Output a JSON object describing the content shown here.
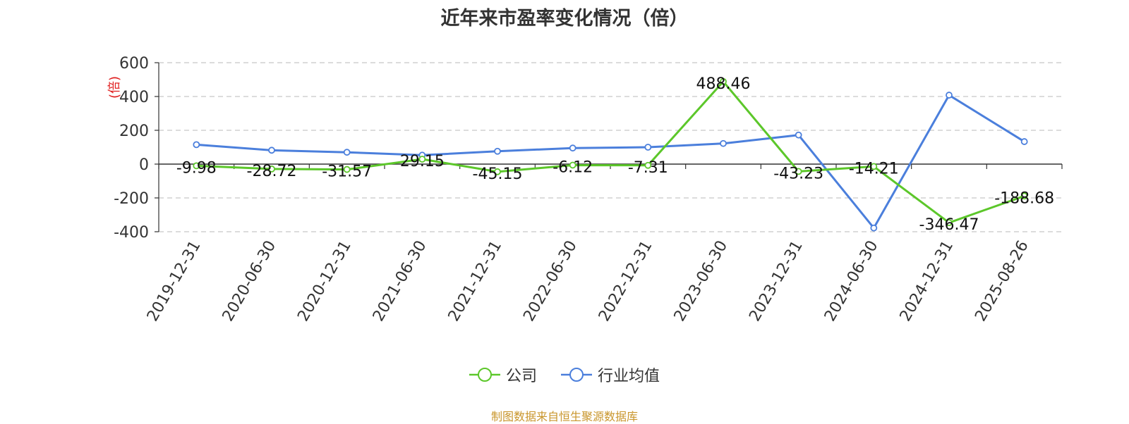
{
  "chart_data": {
    "type": "line",
    "title": "近年来市盈率变化情况（倍）",
    "ylabel": "(倍)",
    "xlabel": "",
    "ylim": [
      -400,
      600
    ],
    "yticks": [
      -400,
      -200,
      0,
      200,
      400,
      600
    ],
    "grid": true,
    "legend_position": "bottom-center",
    "categories": [
      "2019-12-31",
      "2020-06-30",
      "2020-12-31",
      "2021-06-30",
      "2021-12-31",
      "2022-06-30",
      "2022-12-31",
      "2023-06-30",
      "2023-12-31",
      "2024-06-30",
      "2024-12-31",
      "2025-08-26"
    ],
    "series": [
      {
        "name": "公司",
        "color": "#5cc72a",
        "values": [
          -9.98,
          -28.72,
          -31.57,
          29.15,
          -45.15,
          -6.12,
          -7.31,
          488.46,
          -43.23,
          -14.21,
          -346.47,
          -188.68
        ],
        "labels": [
          "-9.98",
          "-28.72",
          "-31.57",
          "29.15",
          "-45.15",
          "-6.12",
          "-7.31",
          "488.46",
          "-43.23",
          "-14.21",
          "-346.47",
          "-188.68"
        ]
      },
      {
        "name": "行业均值",
        "color": "#4b7fdc",
        "values": [
          115,
          82,
          70,
          53,
          76,
          95,
          100,
          122,
          172,
          -378,
          408,
          133
        ]
      }
    ],
    "source": "制图数据来自恒生聚源数据库"
  }
}
